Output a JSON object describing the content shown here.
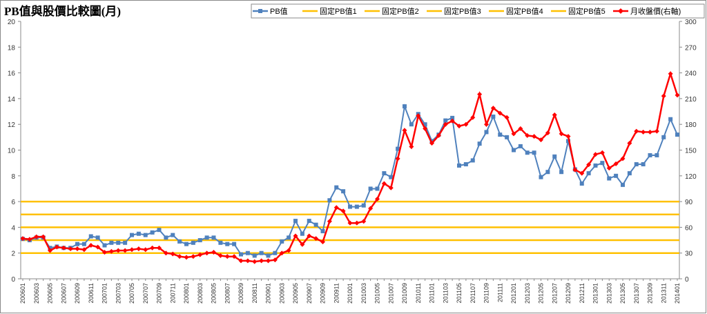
{
  "chart_data": {
    "type": "line",
    "title": "PB值與股價比較圖(月)",
    "xlabel": "",
    "ylabel": "",
    "ylim_left": [
      0,
      20
    ],
    "ylim_right": [
      0,
      300
    ],
    "yticks_left": [
      "0",
      "2",
      "4",
      "6",
      "8",
      "10",
      "12",
      "14",
      "16",
      "18",
      "20"
    ],
    "yticks_right": [
      "0",
      "30",
      "60",
      "90",
      "120",
      "150",
      "180",
      "210",
      "240",
      "270",
      "300"
    ],
    "x": [
      "200601",
      "200602",
      "200603",
      "200604",
      "200605",
      "200606",
      "200607",
      "200608",
      "200609",
      "200610",
      "200611",
      "200612",
      "200701",
      "200702",
      "200703",
      "200704",
      "200705",
      "200706",
      "200707",
      "200708",
      "200709",
      "200710",
      "200711",
      "200712",
      "200801",
      "200802",
      "200803",
      "200804",
      "200805",
      "200806",
      "200807",
      "200808",
      "200809",
      "200810",
      "200811",
      "200812",
      "200901",
      "200902",
      "200903",
      "200904",
      "200905",
      "200906",
      "200907",
      "200908",
      "200909",
      "200910",
      "200911",
      "200912",
      "201001",
      "201002",
      "201003",
      "201004",
      "201005",
      "201006",
      "201007",
      "201008",
      "201009",
      "201010",
      "201011",
      "201012",
      "201101",
      "201102",
      "201103",
      "201104",
      "201105",
      "201106",
      "201107",
      "201108",
      "201109",
      "201110",
      "201111",
      "201112",
      "201201",
      "201202",
      "201203",
      "201204",
      "201205",
      "201206",
      "201207",
      "201208",
      "201209",
      "201210",
      "201211",
      "201212",
      "201301",
      "201302",
      "201303",
      "201304",
      "201305",
      "201306",
      "201307",
      "201308",
      "201309",
      "201310",
      "201311",
      "201312",
      "201401"
    ],
    "x_tick_labels": [
      "200601",
      "200603",
      "200605",
      "200607",
      "200609",
      "200611",
      "200701",
      "200703",
      "200705",
      "200707",
      "200709",
      "200711",
      "200801",
      "200803",
      "200805",
      "200807",
      "200809",
      "200811",
      "200901",
      "200903",
      "200905",
      "200907",
      "200909",
      "200911",
      "201001",
      "201003",
      "201005",
      "201007",
      "201009",
      "201011",
      "201101",
      "201103",
      "201105",
      "201107",
      "201109",
      "201111",
      "201201",
      "201203",
      "201205",
      "201207",
      "201209",
      "201211",
      "201301",
      "201303",
      "201305",
      "201307",
      "201309",
      "201311",
      "201401"
    ],
    "legend_position": "top-right",
    "grid": false,
    "series": [
      {
        "name": "PB值",
        "axis": "left",
        "color": "#4f81bd",
        "marker": "square",
        "values": [
          3.1,
          3.0,
          3.2,
          3.2,
          2.4,
          2.5,
          2.4,
          2.4,
          2.7,
          2.7,
          3.3,
          3.2,
          2.6,
          2.8,
          2.8,
          2.8,
          3.4,
          3.5,
          3.4,
          3.6,
          3.8,
          3.2,
          3.4,
          2.9,
          2.7,
          2.8,
          3.0,
          3.2,
          3.2,
          2.8,
          2.7,
          2.7,
          1.9,
          2.0,
          1.8,
          2.0,
          1.8,
          2.0,
          2.9,
          3.2,
          4.5,
          3.5,
          4.5,
          4.2,
          3.7,
          6.1,
          7.1,
          6.8,
          5.6,
          5.6,
          5.7,
          7.0,
          7.0,
          8.2,
          7.9,
          10.1,
          13.4,
          12.0,
          12.8,
          12.0,
          10.7,
          11.2,
          12.3,
          12.5,
          8.8,
          8.9,
          9.2,
          10.5,
          11.4,
          12.6,
          11.2,
          11.0,
          10.0,
          10.3,
          9.8,
          9.8,
          7.9,
          8.3,
          9.5,
          8.3,
          10.7,
          8.5,
          7.4,
          8.2,
          8.8,
          9.0,
          7.8,
          8.0,
          7.3,
          8.2,
          8.9,
          8.9,
          9.6,
          9.6,
          11.0,
          12.4,
          11.2
        ]
      },
      {
        "name": "固定PB值1",
        "axis": "left",
        "color": "#ffc000",
        "constant": 2
      },
      {
        "name": "固定PB值2",
        "axis": "left",
        "color": "#ffc000",
        "constant": 3
      },
      {
        "name": "固定PB值3",
        "axis": "left",
        "color": "#ffc000",
        "constant": 4
      },
      {
        "name": "固定PB值4",
        "axis": "left",
        "color": "#ffc000",
        "constant": 5
      },
      {
        "name": "固定PB值5",
        "axis": "left",
        "color": "#ffc000",
        "constant": 6
      },
      {
        "name": "月收盤價(右軸)",
        "axis": "right",
        "color": "#ff0000",
        "marker": "diamond",
        "values": [
          47,
          46,
          49,
          49,
          33,
          37,
          36,
          35,
          35,
          34,
          39,
          37,
          31,
          32,
          33,
          33,
          34,
          35,
          34,
          36,
          36,
          30,
          29,
          26,
          25,
          26,
          28,
          30,
          31,
          27,
          26,
          26,
          21,
          21,
          20,
          21,
          21,
          22,
          30,
          33,
          50,
          40,
          50,
          47,
          43,
          67,
          83,
          79,
          65,
          65,
          67,
          82,
          93,
          111,
          106,
          140,
          173,
          154,
          190,
          175,
          158,
          167,
          180,
          184,
          178,
          180,
          188,
          215,
          180,
          199,
          193,
          188,
          169,
          175,
          167,
          166,
          162,
          170,
          191,
          169,
          166,
          127,
          123,
          133,
          145,
          147,
          129,
          134,
          140,
          158,
          172,
          171,
          171,
          172,
          213,
          239,
          214
        ]
      }
    ]
  }
}
